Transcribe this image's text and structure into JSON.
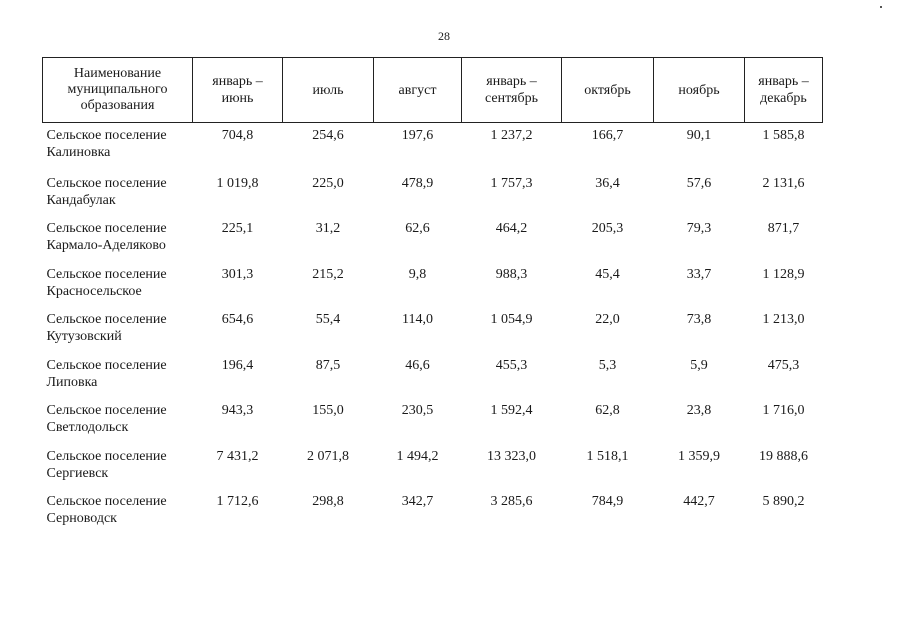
{
  "page": {
    "number": "28"
  },
  "table": {
    "headers": [
      "Наименование муниципального образования",
      "январь – июнь",
      "июль",
      "август",
      "январь – сентябрь",
      "октябрь",
      "ноябрь",
      "январь – декабрь"
    ],
    "rows": [
      {
        "name": "Сельское поселение Калиновка",
        "values": [
          "704,8",
          "254,6",
          "197,6",
          "1 237,2",
          "166,7",
          "90,1",
          "1 585,8"
        ]
      },
      {
        "name": "Сельское поселение Кандабулак",
        "values": [
          "1 019,8",
          "225,0",
          "478,9",
          "1 757,3",
          "36,4",
          "57,6",
          "2 131,6"
        ]
      },
      {
        "name": "Сельское поселение Кармало-Аделяково",
        "values": [
          "225,1",
          "31,2",
          "62,6",
          "464,2",
          "205,3",
          "79,3",
          "871,7"
        ]
      },
      {
        "name": "Сельское поселение Красносельское",
        "values": [
          "301,3",
          "215,2",
          "9,8",
          "988,3",
          "45,4",
          "33,7",
          "1 128,9"
        ]
      },
      {
        "name": "Сельское поселение Кутузовский",
        "values": [
          "654,6",
          "55,4",
          "114,0",
          "1 054,9",
          "22,0",
          "73,8",
          "1 213,0"
        ]
      },
      {
        "name": "Сельское поселение Липовка",
        "values": [
          "196,4",
          "87,5",
          "46,6",
          "455,3",
          "5,3",
          "5,9",
          "475,3"
        ]
      },
      {
        "name": "Сельское поселение Светлодольск",
        "values": [
          "943,3",
          "155,0",
          "230,5",
          "1 592,4",
          "62,8",
          "23,8",
          "1 716,0"
        ]
      },
      {
        "name": "Сельское поселение Сергиевск",
        "values": [
          "7 431,2",
          "2 071,8",
          "1 494,2",
          "13 323,0",
          "1 518,1",
          "1 359,9",
          "19 888,6"
        ]
      },
      {
        "name": "Сельское поселение Серноводск",
        "values": [
          "1 712,6",
          "298,8",
          "342,7",
          "3 285,6",
          "784,9",
          "442,7",
          "5 890,2"
        ]
      }
    ]
  }
}
